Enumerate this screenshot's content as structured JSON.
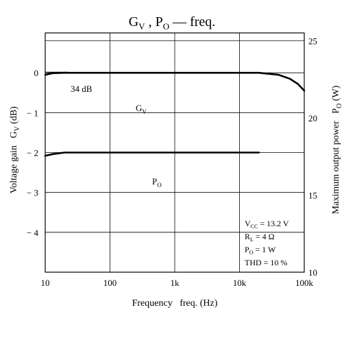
{
  "chart_data": {
    "type": "line",
    "title": {
      "main": "G",
      "main_sub": "V",
      "sep": " , P",
      "sep_sub": "O",
      "tail": " — freq."
    },
    "xlabel": "Frequency   freq. (Hz)",
    "ylabel_left": {
      "text": "Voltage gain   G",
      "sub": "V",
      "tail": " (dB)"
    },
    "ylabel_right": {
      "text": "Maximum output power   P",
      "sub": "O",
      "tail": " (W)"
    },
    "x_scale": "log",
    "xlim": [
      10,
      100000
    ],
    "x_ticks": [
      10,
      100,
      1000,
      10000,
      100000
    ],
    "x_tick_labels": [
      "10",
      "100",
      "1k",
      "10k",
      "100k"
    ],
    "y_left_lim": [
      -5,
      1
    ],
    "y_left_ticks": [
      0,
      -1,
      -2,
      -3,
      -4
    ],
    "y_left_tick_labels": [
      "0",
      "− 1",
      "− 2",
      "− 3",
      "− 4"
    ],
    "y_right_lim": [
      10,
      25.5
    ],
    "y_right_ticks": [
      25,
      20,
      15,
      10
    ],
    "y_right_tick_labels": [
      "25",
      "20",
      "15",
      "10"
    ],
    "grid": true,
    "series": [
      {
        "name": "G",
        "name_sub": "V",
        "axis": "left",
        "x": [
          10,
          13,
          20,
          50,
          100,
          1000,
          10000,
          20000,
          40000,
          60000,
          80000,
          100000
        ],
        "y": [
          -0.05,
          -0.01,
          0.0,
          0.0,
          0.0,
          0.0,
          0.0,
          0.0,
          -0.05,
          -0.15,
          -0.28,
          -0.45
        ]
      },
      {
        "name": "P",
        "name_sub": "O",
        "axis": "left",
        "x": [
          10,
          13,
          20,
          50,
          100,
          1000,
          10000,
          20000
        ],
        "y": [
          -2.08,
          -2.04,
          -2.0,
          -2.0,
          -2.0,
          -2.0,
          -2.0,
          -2.0
        ]
      }
    ],
    "annotations": {
      "ref_label": "34 dB",
      "conditions": [
        {
          "pre": "V",
          "sub": "CC",
          "post": " = 13.2 V"
        },
        {
          "pre": "R",
          "sub": "L",
          "post": " = 4 Ω"
        },
        {
          "pre": "P",
          "sub": "O",
          "post": " = 1 W"
        },
        {
          "pre": "THD = 10 %",
          "sub": "",
          "post": ""
        }
      ]
    }
  }
}
